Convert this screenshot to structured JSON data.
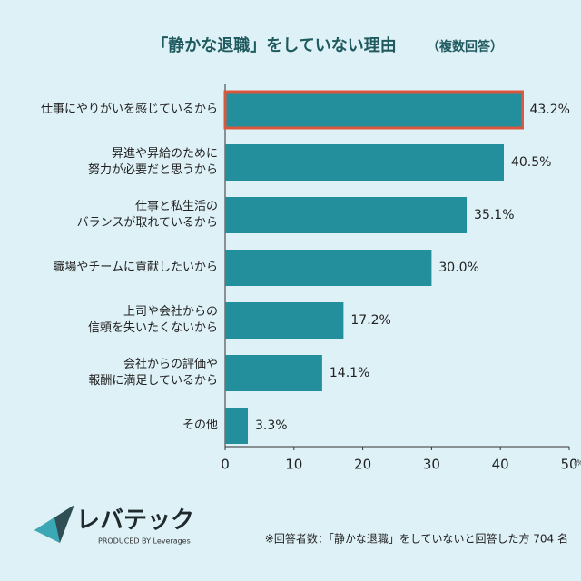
{
  "chart_data": {
    "type": "bar",
    "orientation": "horizontal",
    "title": "「静かな退職」をしていない理由",
    "subtitle": "（複数回答）",
    "categories": [
      "仕事にやりがいを感じているから",
      "昇進や昇給のために\n努力が必要だと思うから",
      "仕事と私生活の\nバランスが取れているから",
      "職場やチームに貢献したいから",
      "上司や会社からの\n信頼を失いたくないから",
      "会社からの評価や\n報酬に満足しているから",
      "その他"
    ],
    "values": [
      43.2,
      40.5,
      35.1,
      30.0,
      17.2,
      14.1,
      3.3
    ],
    "value_labels": [
      "43.2%",
      "40.5%",
      "35.1%",
      "30.0%",
      "17.2%",
      "14.1%",
      "3.3%"
    ],
    "color": "#238f9c",
    "highlight": 0,
    "highlight_color": "#d9573f",
    "xlim": [
      0,
      50
    ],
    "xticks": [
      0,
      10,
      20,
      30,
      40,
      50
    ],
    "xlabel": "(%)",
    "brand": "レバテック",
    "brand_sub": "PRODUCED BY Leverages",
    "footnote": "※回答者数：「静かな退職」をしていないと回答した方 704 名"
  }
}
